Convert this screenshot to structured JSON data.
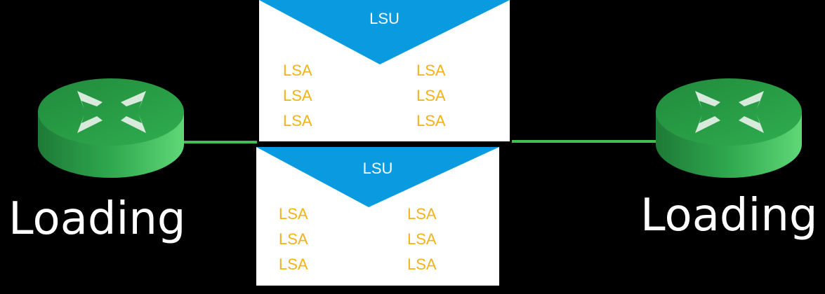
{
  "routers": [
    {
      "id": "left",
      "state": "Loading",
      "icon": "router-icon",
      "color": "#2fa84f"
    },
    {
      "id": "right",
      "state": "Loading",
      "icon": "router-icon",
      "color": "#2fa84f"
    }
  ],
  "link_color": "#3fbf4f",
  "envelope_flap_color": "#0a9ae0",
  "lsa_text_color": "#f2b21b",
  "packets": [
    {
      "type": "LSU",
      "lsas": {
        "left": [
          "LSA",
          "LSA",
          "LSA"
        ],
        "right": [
          "LSA",
          "LSA",
          "LSA"
        ]
      }
    },
    {
      "type": "LSU",
      "lsas": {
        "left": [
          "LSA",
          "LSA",
          "LSA"
        ],
        "right": [
          "LSA",
          "LSA",
          "LSA"
        ]
      }
    }
  ]
}
